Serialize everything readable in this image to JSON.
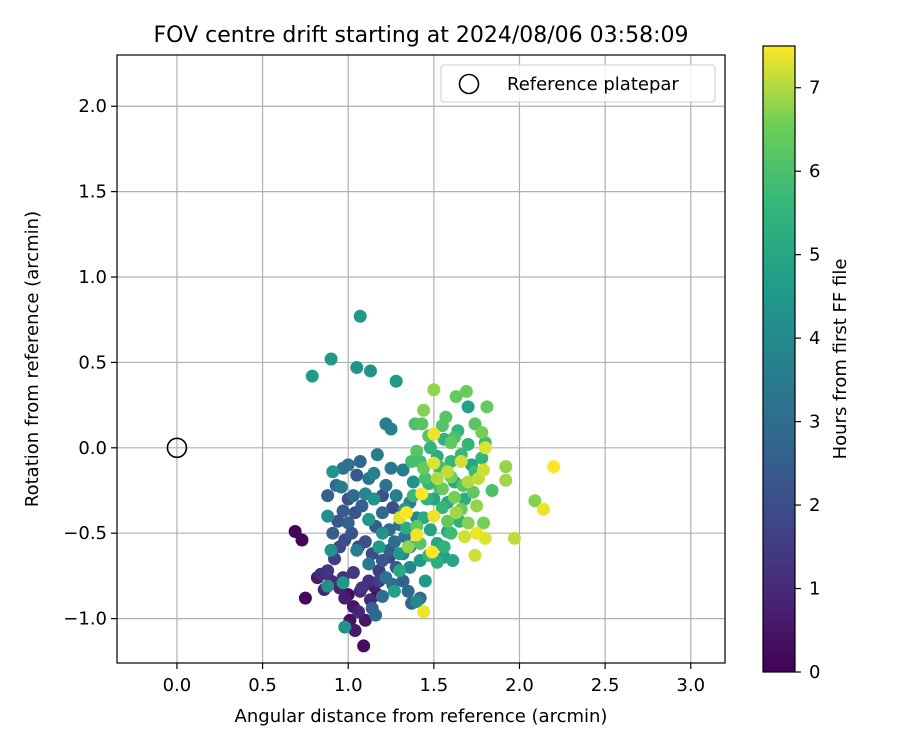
{
  "chart_data": {
    "type": "scatter",
    "title": "FOV centre drift starting at 2024/08/06 03:58:09",
    "xlabel": "Angular distance from reference (arcmin)",
    "ylabel": "Rotation from reference (arcmin)",
    "xlim": [
      -0.35,
      3.2
    ],
    "ylim": [
      -1.26,
      2.3
    ],
    "x_ticks": [
      0.0,
      0.5,
      1.0,
      1.5,
      2.0,
      2.5,
      3.0
    ],
    "x_tick_labels": [
      "0.0",
      "0.5",
      "1.0",
      "1.5",
      "2.0",
      "2.5",
      "3.0"
    ],
    "y_ticks": [
      -1.0,
      -0.5,
      0.0,
      0.5,
      1.0,
      1.5,
      2.0
    ],
    "y_tick_labels": [
      "−1.0",
      "−0.5",
      "0.0",
      "0.5",
      "1.0",
      "1.5",
      "2.0"
    ],
    "grid": true,
    "legend": {
      "placement": "top-right",
      "entries": [
        "Reference platepar"
      ]
    },
    "reference_point": {
      "x": 0.0,
      "y": 0.0,
      "label": "Reference platepar"
    },
    "colorbar": {
      "label": "Hours from first FF file",
      "range": [
        0,
        7.5
      ],
      "ticks": [
        0,
        1,
        2,
        3,
        4,
        5,
        6,
        7
      ],
      "tick_labels": [
        "0",
        "1",
        "2",
        "3",
        "4",
        "5",
        "6",
        "7"
      ],
      "colormap": "viridis"
    },
    "points": [
      {
        "x": 0.69,
        "y": -0.49,
        "h": 0.1
      },
      {
        "x": 0.73,
        "y": -0.54,
        "h": 0.1
      },
      {
        "x": 0.75,
        "y": -0.88,
        "h": 0.2
      },
      {
        "x": 0.82,
        "y": -0.76,
        "h": 0.6
      },
      {
        "x": 0.84,
        "y": -0.74,
        "h": 1.1
      },
      {
        "x": 0.86,
        "y": -0.83,
        "h": 0.9
      },
      {
        "x": 0.88,
        "y": -0.72,
        "h": 1.3
      },
      {
        "x": 0.9,
        "y": -0.78,
        "h": 1.0
      },
      {
        "x": 0.92,
        "y": -0.65,
        "h": 1.6
      },
      {
        "x": 0.95,
        "y": -0.82,
        "h": 0.8
      },
      {
        "x": 0.97,
        "y": -0.76,
        "h": 1.2
      },
      {
        "x": 0.98,
        "y": -0.88,
        "h": 0.7
      },
      {
        "x": 1.0,
        "y": -0.86,
        "h": 0.3
      },
      {
        "x": 1.01,
        "y": -1.01,
        "h": 0.4
      },
      {
        "x": 1.03,
        "y": -0.93,
        "h": 0.5
      },
      {
        "x": 1.04,
        "y": -1.07,
        "h": 0.6
      },
      {
        "x": 1.06,
        "y": -0.96,
        "h": 0.9
      },
      {
        "x": 1.07,
        "y": -0.84,
        "h": 1.0
      },
      {
        "x": 1.09,
        "y": -1.16,
        "h": 0.3
      },
      {
        "x": 1.1,
        "y": -1.01,
        "h": 0.5
      },
      {
        "x": 1.12,
        "y": -0.78,
        "h": 1.2
      },
      {
        "x": 1.13,
        "y": -0.89,
        "h": 1.0
      },
      {
        "x": 1.15,
        "y": -0.81,
        "h": 0.7
      },
      {
        "x": 1.17,
        "y": -0.86,
        "h": 0.2
      },
      {
        "x": 1.18,
        "y": -0.72,
        "h": 1.5
      },
      {
        "x": 1.03,
        "y": -0.73,
        "h": 1.4
      },
      {
        "x": 0.95,
        "y": -0.58,
        "h": 1.8
      },
      {
        "x": 0.98,
        "y": -0.54,
        "h": 2.0
      },
      {
        "x": 1.02,
        "y": -0.5,
        "h": 2.2
      },
      {
        "x": 1.06,
        "y": -0.58,
        "h": 1.7
      },
      {
        "x": 1.1,
        "y": -0.55,
        "h": 2.1
      },
      {
        "x": 1.14,
        "y": -0.62,
        "h": 1.9
      },
      {
        "x": 1.2,
        "y": -0.66,
        "h": 2.3
      },
      {
        "x": 1.24,
        "y": -0.6,
        "h": 2.5
      },
      {
        "x": 1.28,
        "y": -0.7,
        "h": 2.4
      },
      {
        "x": 1.32,
        "y": -0.78,
        "h": 2.6
      },
      {
        "x": 1.35,
        "y": -0.84,
        "h": 2.8
      },
      {
        "x": 1.37,
        "y": -0.91,
        "h": 2.7
      },
      {
        "x": 1.42,
        "y": -0.88,
        "h": 3.0
      },
      {
        "x": 1.14,
        "y": -0.94,
        "h": 2.6
      },
      {
        "x": 1.16,
        "y": -0.98,
        "h": 2.9
      },
      {
        "x": 1.2,
        "y": -0.87,
        "h": 3.1
      },
      {
        "x": 0.91,
        "y": -0.5,
        "h": 2.5
      },
      {
        "x": 0.94,
        "y": -0.43,
        "h": 2.3
      },
      {
        "x": 0.97,
        "y": -0.37,
        "h": 2.4
      },
      {
        "x": 1.0,
        "y": -0.44,
        "h": 2.6
      },
      {
        "x": 1.04,
        "y": -0.38,
        "h": 2.2
      },
      {
        "x": 1.08,
        "y": -0.34,
        "h": 2.5
      },
      {
        "x": 1.12,
        "y": -0.42,
        "h": 2.7
      },
      {
        "x": 1.16,
        "y": -0.46,
        "h": 2.4
      },
      {
        "x": 1.2,
        "y": -0.38,
        "h": 2.8
      },
      {
        "x": 1.24,
        "y": -0.48,
        "h": 2.9
      },
      {
        "x": 1.27,
        "y": -0.55,
        "h": 3.0
      },
      {
        "x": 1.3,
        "y": -0.45,
        "h": 3.2
      },
      {
        "x": 1.33,
        "y": -0.52,
        "h": 3.3
      },
      {
        "x": 1.36,
        "y": -0.58,
        "h": 3.4
      },
      {
        "x": 0.88,
        "y": -0.28,
        "h": 2.6
      },
      {
        "x": 0.93,
        "y": -0.22,
        "h": 2.9
      },
      {
        "x": 0.97,
        "y": -0.12,
        "h": 3.1
      },
      {
        "x": 1.0,
        "y": -0.1,
        "h": 3.2
      },
      {
        "x": 1.03,
        "y": -0.28,
        "h": 3.0
      },
      {
        "x": 1.07,
        "y": -0.08,
        "h": 2.8
      },
      {
        "x": 1.12,
        "y": -0.18,
        "h": 3.3
      },
      {
        "x": 1.17,
        "y": -0.04,
        "h": 3.5
      },
      {
        "x": 1.22,
        "y": -0.22,
        "h": 3.2
      },
      {
        "x": 1.25,
        "y": -0.12,
        "h": 3.4
      },
      {
        "x": 1.28,
        "y": -0.28,
        "h": 3.6
      },
      {
        "x": 1.32,
        "y": -0.13,
        "h": 3.5
      },
      {
        "x": 1.22,
        "y": 0.14,
        "h": 3.6
      },
      {
        "x": 1.25,
        "y": 0.11,
        "h": 3.8
      },
      {
        "x": 1.36,
        "y": -0.32,
        "h": 3.7
      },
      {
        "x": 1.4,
        "y": -0.41,
        "h": 3.9
      },
      {
        "x": 0.88,
        "y": -0.4,
        "h": 4.2
      },
      {
        "x": 0.91,
        "y": -0.14,
        "h": 4.4
      },
      {
        "x": 0.9,
        "y": -0.6,
        "h": 4.3
      },
      {
        "x": 0.88,
        "y": -0.81,
        "h": 4.2
      },
      {
        "x": 0.97,
        "y": -0.79,
        "h": 4.5
      },
      {
        "x": 0.98,
        "y": -1.05,
        "h": 4.3
      },
      {
        "x": 1.12,
        "y": -0.42,
        "h": 4.5
      },
      {
        "x": 1.15,
        "y": -0.3,
        "h": 4.4
      },
      {
        "x": 1.2,
        "y": -0.5,
        "h": 4.3
      },
      {
        "x": 1.18,
        "y": -0.58,
        "h": 4.6
      },
      {
        "x": 1.3,
        "y": -0.62,
        "h": 4.5
      },
      {
        "x": 1.33,
        "y": -0.36,
        "h": 4.7
      },
      {
        "x": 1.38,
        "y": -0.2,
        "h": 4.4
      },
      {
        "x": 1.42,
        "y": -0.66,
        "h": 4.6
      },
      {
        "x": 1.45,
        "y": -0.78,
        "h": 4.5
      },
      {
        "x": 1.27,
        "y": -0.84,
        "h": 4.8
      },
      {
        "x": 1.48,
        "y": -0.48,
        "h": 4.9
      },
      {
        "x": 1.52,
        "y": -0.56,
        "h": 5.0
      },
      {
        "x": 1.56,
        "y": -0.64,
        "h": 4.8
      },
      {
        "x": 1.58,
        "y": -0.49,
        "h": 5.1
      },
      {
        "x": 1.61,
        "y": -0.66,
        "h": 5.0
      },
      {
        "x": 1.44,
        "y": -0.41,
        "h": 5.2
      },
      {
        "x": 1.5,
        "y": -0.3,
        "h": 5.0
      },
      {
        "x": 1.54,
        "y": -0.24,
        "h": 5.3
      },
      {
        "x": 1.58,
        "y": -0.32,
        "h": 5.1
      },
      {
        "x": 1.62,
        "y": -0.2,
        "h": 5.2
      },
      {
        "x": 1.65,
        "y": -0.43,
        "h": 5.4
      },
      {
        "x": 1.68,
        "y": -0.3,
        "h": 5.2
      },
      {
        "x": 1.72,
        "y": -0.1,
        "h": 5.0
      },
      {
        "x": 1.7,
        "y": 0.24,
        "h": 4.8
      },
      {
        "x": 1.52,
        "y": -0.05,
        "h": 5.3
      },
      {
        "x": 1.48,
        "y": 0.0,
        "h": 5.5
      },
      {
        "x": 1.56,
        "y": 0.05,
        "h": 5.4
      },
      {
        "x": 1.6,
        "y": -0.08,
        "h": 5.6
      },
      {
        "x": 1.64,
        "y": 0.1,
        "h": 5.5
      },
      {
        "x": 1.66,
        "y": -0.04,
        "h": 5.7
      },
      {
        "x": 1.7,
        "y": 0.02,
        "h": 5.6
      },
      {
        "x": 1.74,
        "y": -0.14,
        "h": 5.8
      },
      {
        "x": 1.78,
        "y": -0.06,
        "h": 5.5
      },
      {
        "x": 1.8,
        "y": 0.03,
        "h": 5.8
      },
      {
        "x": 1.84,
        "y": -0.25,
        "h": 6.0
      },
      {
        "x": 1.42,
        "y": -0.08,
        "h": 5.9
      },
      {
        "x": 1.45,
        "y": -0.18,
        "h": 6.0
      },
      {
        "x": 1.47,
        "y": 0.07,
        "h": 6.1
      },
      {
        "x": 1.39,
        "y": 0.14,
        "h": 6.0
      },
      {
        "x": 1.43,
        "y": 0.14,
        "h": 6.2
      },
      {
        "x": 1.55,
        "y": 0.13,
        "h": 6.1
      },
      {
        "x": 1.6,
        "y": 0.03,
        "h": 6.3
      },
      {
        "x": 1.63,
        "y": 0.3,
        "h": 6.4
      },
      {
        "x": 1.69,
        "y": 0.33,
        "h": 6.5
      },
      {
        "x": 1.74,
        "y": 0.14,
        "h": 6.2
      },
      {
        "x": 1.78,
        "y": 0.09,
        "h": 6.6
      },
      {
        "x": 1.81,
        "y": 0.24,
        "h": 6.4
      },
      {
        "x": 1.44,
        "y": 0.22,
        "h": 6.7
      },
      {
        "x": 1.5,
        "y": 0.34,
        "h": 6.8
      },
      {
        "x": 1.4,
        "y": -0.46,
        "h": 6.3
      },
      {
        "x": 1.42,
        "y": -0.56,
        "h": 6.2
      },
      {
        "x": 1.58,
        "y": -0.43,
        "h": 6.4
      },
      {
        "x": 1.62,
        "y": -0.29,
        "h": 6.6
      },
      {
        "x": 1.66,
        "y": -0.36,
        "h": 6.5
      },
      {
        "x": 1.7,
        "y": -0.44,
        "h": 6.7
      },
      {
        "x": 1.75,
        "y": -0.34,
        "h": 6.8
      },
      {
        "x": 1.79,
        "y": -0.44,
        "h": 6.6
      },
      {
        "x": 1.92,
        "y": -0.19,
        "h": 6.9
      },
      {
        "x": 1.92,
        "y": -0.11,
        "h": 6.8
      },
      {
        "x": 2.09,
        "y": -0.31,
        "h": 6.7
      },
      {
        "x": 1.35,
        "y": -0.58,
        "h": 6.8
      },
      {
        "x": 1.52,
        "y": -0.18,
        "h": 7.0
      },
      {
        "x": 1.58,
        "y": -0.14,
        "h": 7.1
      },
      {
        "x": 1.66,
        "y": -0.08,
        "h": 7.2
      },
      {
        "x": 1.7,
        "y": -0.2,
        "h": 7.0
      },
      {
        "x": 1.76,
        "y": -0.18,
        "h": 7.1
      },
      {
        "x": 1.79,
        "y": -0.13,
        "h": 7.2
      },
      {
        "x": 1.8,
        "y": 0.0,
        "h": 7.3
      },
      {
        "x": 1.68,
        "y": -0.52,
        "h": 7.2
      },
      {
        "x": 1.75,
        "y": -0.5,
        "h": 7.4
      },
      {
        "x": 1.8,
        "y": -0.53,
        "h": 7.3
      },
      {
        "x": 1.74,
        "y": -0.63,
        "h": 7.2
      },
      {
        "x": 1.97,
        "y": -0.53,
        "h": 7.1
      },
      {
        "x": 2.14,
        "y": -0.36,
        "h": 7.4
      },
      {
        "x": 2.2,
        "y": -0.11,
        "h": 7.5
      },
      {
        "x": 1.5,
        "y": -0.09,
        "h": 7.3
      },
      {
        "x": 1.5,
        "y": -0.4,
        "h": 7.4
      },
      {
        "x": 1.49,
        "y": -0.61,
        "h": 7.5
      },
      {
        "x": 1.44,
        "y": -0.96,
        "h": 7.4
      },
      {
        "x": 1.3,
        "y": -0.41,
        "h": 7.3
      },
      {
        "x": 1.34,
        "y": -0.38,
        "h": 7.5
      },
      {
        "x": 1.4,
        "y": -0.51,
        "h": 7.4
      },
      {
        "x": 1.43,
        "y": -0.27,
        "h": 7.5
      },
      {
        "x": 1.5,
        "y": 0.08,
        "h": 7.4
      },
      {
        "x": 0.79,
        "y": 0.42,
        "h": 4.6
      },
      {
        "x": 0.9,
        "y": 0.52,
        "h": 4.5
      },
      {
        "x": 1.05,
        "y": 0.47,
        "h": 4.4
      },
      {
        "x": 1.13,
        "y": 0.45,
        "h": 4.3
      },
      {
        "x": 1.07,
        "y": 0.77,
        "h": 4.5
      },
      {
        "x": 1.28,
        "y": 0.39,
        "h": 4.5
      },
      {
        "x": 1.55,
        "y": -0.35,
        "h": 5.6
      },
      {
        "x": 1.6,
        "y": -0.5,
        "h": 5.8
      },
      {
        "x": 1.46,
        "y": -0.3,
        "h": 5.4
      },
      {
        "x": 1.38,
        "y": -0.28,
        "h": 5.7
      },
      {
        "x": 1.34,
        "y": -0.47,
        "h": 5.2
      },
      {
        "x": 1.3,
        "y": -0.72,
        "h": 5.1
      },
      {
        "x": 1.52,
        "y": -0.67,
        "h": 5.3
      },
      {
        "x": 1.62,
        "y": 0.06,
        "h": 6.0
      },
      {
        "x": 1.57,
        "y": 0.18,
        "h": 6.2
      },
      {
        "x": 1.67,
        "y": -0.22,
        "h": 6.1
      },
      {
        "x": 1.73,
        "y": -0.26,
        "h": 6.3
      },
      {
        "x": 1.55,
        "y": -0.24,
        "h": 6.5
      },
      {
        "x": 1.6,
        "y": -0.17,
        "h": 6.6
      },
      {
        "x": 1.63,
        "y": -0.38,
        "h": 6.9
      },
      {
        "x": 1.44,
        "y": -0.12,
        "h": 6.4
      },
      {
        "x": 1.4,
        "y": -0.02,
        "h": 6.2
      },
      {
        "x": 1.37,
        "y": -0.08,
        "h": 5.9
      },
      {
        "x": 1.47,
        "y": -0.21,
        "h": 5.5
      },
      {
        "x": 1.53,
        "y": -0.11,
        "h": 5.8
      },
      {
        "x": 1.47,
        "y": -0.63,
        "h": 5.6
      },
      {
        "x": 1.56,
        "y": -0.58,
        "h": 5.4
      },
      {
        "x": 1.1,
        "y": -0.27,
        "h": 3.9
      },
      {
        "x": 1.15,
        "y": -0.15,
        "h": 3.7
      },
      {
        "x": 1.05,
        "y": -0.6,
        "h": 3.6
      },
      {
        "x": 1.12,
        "y": -0.68,
        "h": 3.4
      },
      {
        "x": 1.22,
        "y": -0.76,
        "h": 3.2
      },
      {
        "x": 1.26,
        "y": -0.8,
        "h": 3.0
      },
      {
        "x": 1.32,
        "y": -0.62,
        "h": 3.8
      },
      {
        "x": 1.36,
        "y": -0.7,
        "h": 3.9
      },
      {
        "x": 1.4,
        "y": -0.9,
        "h": 4.0
      },
      {
        "x": 0.96,
        "y": -0.23,
        "h": 3.5
      },
      {
        "x": 1.0,
        "y": -0.3,
        "h": 2.1
      },
      {
        "x": 1.05,
        "y": -0.16,
        "h": 2.3
      },
      {
        "x": 1.2,
        "y": -0.28,
        "h": 2.2
      },
      {
        "x": 1.26,
        "y": -0.35,
        "h": 2.0
      },
      {
        "x": 1.08,
        "y": -0.82,
        "h": 1.3
      },
      {
        "x": 1.18,
        "y": -0.78,
        "h": 1.6
      },
      {
        "x": 1.24,
        "y": -0.64,
        "h": 1.8
      }
    ]
  }
}
